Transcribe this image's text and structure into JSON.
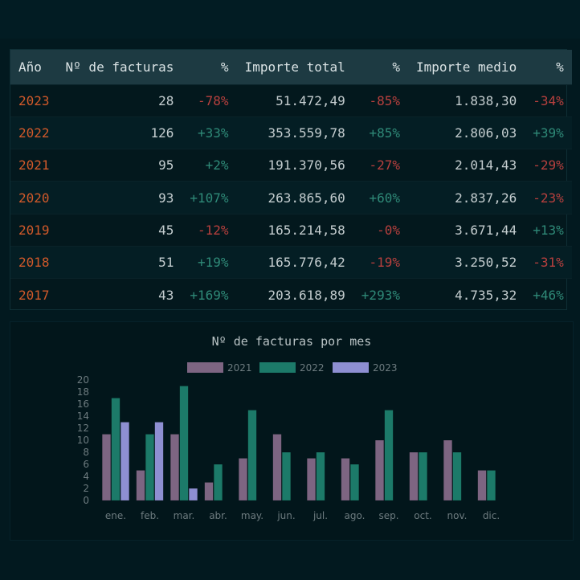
{
  "table": {
    "headers": [
      "Año",
      "Nº de facturas",
      "%",
      "Importe total",
      "%",
      "Importe medio",
      "%"
    ],
    "rows": [
      {
        "year": "2023",
        "facturas": "28",
        "facturas_pct": "-78%",
        "total": "51.472,49",
        "total_pct": "-85%",
        "medio": "1.838,30",
        "medio_pct": "-34%"
      },
      {
        "year": "2022",
        "facturas": "126",
        "facturas_pct": "+33%",
        "total": "353.559,78",
        "total_pct": "+85%",
        "medio": "2.806,03",
        "medio_pct": "+39%"
      },
      {
        "year": "2021",
        "facturas": "95",
        "facturas_pct": "+2%",
        "total": "191.370,56",
        "total_pct": "-27%",
        "medio": "2.014,43",
        "medio_pct": "-29%"
      },
      {
        "year": "2020",
        "facturas": "93",
        "facturas_pct": "+107%",
        "total": "263.865,60",
        "total_pct": "+60%",
        "medio": "2.837,26",
        "medio_pct": "-23%"
      },
      {
        "year": "2019",
        "facturas": "45",
        "facturas_pct": "-12%",
        "total": "165.214,58",
        "total_pct": "-0%",
        "medio": "3.671,44",
        "medio_pct": "+13%"
      },
      {
        "year": "2018",
        "facturas": "51",
        "facturas_pct": "+19%",
        "total": "165.776,42",
        "total_pct": "-19%",
        "medio": "3.250,52",
        "medio_pct": "-31%"
      },
      {
        "year": "2017",
        "facturas": "43",
        "facturas_pct": "+169%",
        "total": "203.618,89",
        "total_pct": "+293%",
        "medio": "4.735,32",
        "medio_pct": "+46%"
      }
    ]
  },
  "colors": {
    "year": "#d0592a",
    "positive": "#2f8a78",
    "negative": "#b8403e",
    "series_2021": "#7d6582",
    "series_2022": "#1c7a69",
    "series_2023": "#8e8fd2"
  },
  "chart_data": {
    "type": "bar",
    "title": "Nº de facturas por mes",
    "categories": [
      "ene.",
      "feb.",
      "mar.",
      "abr.",
      "may.",
      "jun.",
      "jul.",
      "ago.",
      "sep.",
      "oct.",
      "nov.",
      "dic."
    ],
    "series": [
      {
        "name": "2021",
        "values": [
          11,
          5,
          11,
          3,
          7,
          11,
          7,
          7,
          10,
          8,
          10,
          5
        ]
      },
      {
        "name": "2022",
        "values": [
          17,
          11,
          19,
          6,
          15,
          8,
          8,
          6,
          15,
          8,
          8,
          5
        ]
      },
      {
        "name": "2023",
        "values": [
          13,
          13,
          2,
          null,
          null,
          null,
          null,
          null,
          null,
          null,
          null,
          null
        ]
      }
    ],
    "yticks": [
      0,
      2,
      4,
      6,
      8,
      10,
      12,
      14,
      16,
      18,
      20
    ],
    "ylim": [
      0,
      20
    ],
    "legend": "top-center",
    "grid": false
  }
}
